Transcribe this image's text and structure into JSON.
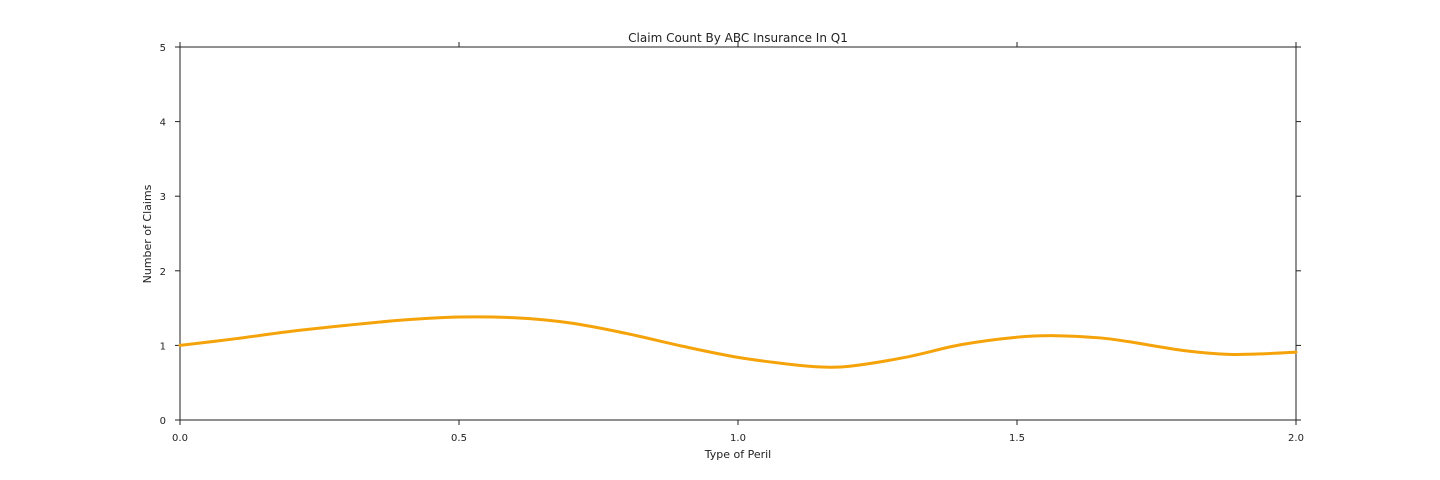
{
  "chart_data": {
    "type": "line",
    "title": "Claim Count By ABC Insurance In Q1",
    "xlabel": "Type of Peril",
    "ylabel": "Number of Claims",
    "xlim": [
      0.0,
      2.0
    ],
    "ylim": [
      0,
      5
    ],
    "xticks": [
      "0.0",
      "0.5",
      "1.0",
      "1.5",
      "2.0"
    ],
    "yticks": [
      "0",
      "1",
      "2",
      "3",
      "4",
      "5"
    ],
    "grid": false,
    "series": [
      {
        "color": "#f5a30a",
        "x": [
          0.0,
          0.1,
          0.2,
          0.3,
          0.4,
          0.5,
          0.6,
          0.7,
          0.8,
          0.9,
          1.0,
          1.1,
          1.15,
          1.2,
          1.3,
          1.4,
          1.5,
          1.57,
          1.65,
          1.7,
          1.8,
          1.88,
          1.95,
          2.0
        ],
        "y": [
          1.0,
          1.09,
          1.19,
          1.27,
          1.34,
          1.38,
          1.37,
          1.3,
          1.16,
          0.99,
          0.84,
          0.74,
          0.71,
          0.72,
          0.84,
          1.01,
          1.11,
          1.13,
          1.1,
          1.05,
          0.93,
          0.88,
          0.89,
          0.91
        ]
      }
    ]
  }
}
